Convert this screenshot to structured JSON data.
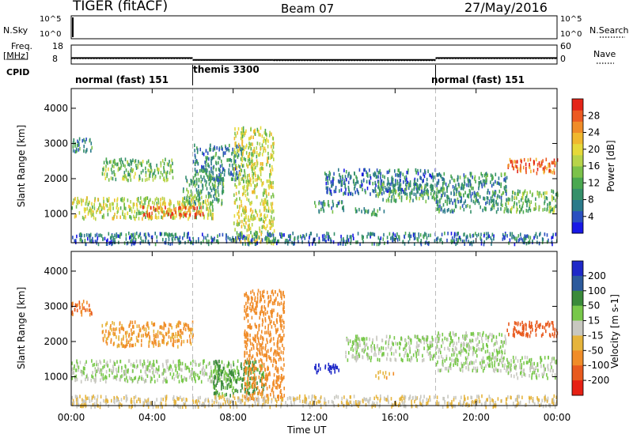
{
  "header": {
    "title": "TIGER (fitACF)",
    "beam": "Beam 07",
    "date": "27/May/2016"
  },
  "top_panels": {
    "nsky_label": "N.Sky",
    "nsky_ticks_left": [
      "10^5",
      "10^0"
    ],
    "nsearch_label": "N.Search",
    "nsearch_ticks_right": [
      "10^5",
      "10^0"
    ],
    "freq_label": "Freq.",
    "freq_unit": "[MHz]",
    "freq_ticks": [
      "18",
      "8"
    ],
    "nave_label": "Nave",
    "nave_ticks": [
      "60",
      "0"
    ],
    "cpid_label": "CPID",
    "cpid_segments": [
      {
        "label": "normal (fast) 151",
        "start_h": 0,
        "end_h": 6
      },
      {
        "label": "themis 3300",
        "start_h": 6,
        "end_h": 18
      },
      {
        "label": "normal (fast) 151",
        "start_h": 18,
        "end_h": 24
      }
    ],
    "freq_series_mhz": [
      {
        "start_h": 0,
        "end_h": 6,
        "value": 11.2
      },
      {
        "start_h": 6,
        "end_h": 10,
        "value": 10.2
      },
      {
        "start_h": 10,
        "end_h": 18,
        "value": 10.2
      },
      {
        "start_h": 18,
        "end_h": 24,
        "value": 11.2
      }
    ],
    "nave_series": [
      {
        "start_h": 0,
        "end_h": 6,
        "value": 17
      },
      {
        "start_h": 6,
        "end_h": 10,
        "value": 12
      },
      {
        "start_h": 10,
        "end_h": 18,
        "value": 11
      },
      {
        "start_h": 18,
        "end_h": 24,
        "value": 17
      }
    ]
  },
  "chart_data": [
    {
      "type": "heatmap",
      "panel": "power",
      "ylabel": "Slant Range [km]",
      "xlabel": "",
      "x_range_hours": [
        0,
        24
      ],
      "ylim": [
        180,
        4560
      ],
      "y_ticks": [
        "1000",
        "2000",
        "3000",
        "4000"
      ],
      "x_ticks": [
        "00:00",
        "04:00",
        "08:00",
        "12:00",
        "16:00",
        "20:00",
        "00:00"
      ],
      "colorbar": {
        "label": "Power [dB]",
        "ticks": [
          "4",
          "8",
          "12",
          "16",
          "20",
          "24",
          "28"
        ],
        "colors": [
          "#1818e6",
          "#2a4fc0",
          "#2b7a8a",
          "#35906a",
          "#4aa850",
          "#7cc24a",
          "#b8d44a",
          "#e6d93a",
          "#f0b82e",
          "#f08c28",
          "#ec5a22",
          "#e42418"
        ]
      },
      "regions": [
        {
          "t0": 0.0,
          "t1": 7.0,
          "r0": 900,
          "r1": 1500,
          "value": 18
        },
        {
          "t0": 3.5,
          "t1": 6.5,
          "r0": 950,
          "r1": 1250,
          "value": 26
        },
        {
          "t0": 5.5,
          "t1": 7.5,
          "r0": 1300,
          "r1": 2100,
          "value": 12
        },
        {
          "t0": 0.0,
          "t1": 1.0,
          "r0": 2800,
          "r1": 3200,
          "value": 10
        },
        {
          "t0": 1.5,
          "t1": 5.0,
          "r0": 2000,
          "r1": 2600,
          "value": 14
        },
        {
          "t0": 6.0,
          "t1": 8.5,
          "r0": 2000,
          "r1": 3000,
          "value": 9
        },
        {
          "t0": 8.0,
          "t1": 10.0,
          "r0": 200,
          "r1": 3500,
          "value": 18
        },
        {
          "t0": 12.0,
          "t1": 13.5,
          "r0": 1100,
          "r1": 1400,
          "value": 10
        },
        {
          "t0": 12.5,
          "t1": 18.0,
          "r0": 1600,
          "r1": 2300,
          "value": 8
        },
        {
          "t0": 15.0,
          "t1": 18.0,
          "r0": 1400,
          "r1": 1900,
          "value": 12
        },
        {
          "t0": 14.0,
          "t1": 15.5,
          "r0": 1000,
          "r1": 1200,
          "value": 11
        },
        {
          "t0": 18.0,
          "t1": 21.5,
          "r0": 1100,
          "r1": 2200,
          "value": 10
        },
        {
          "t0": 21.5,
          "t1": 24.0,
          "r0": 2200,
          "r1": 2600,
          "value": 26
        },
        {
          "t0": 21.5,
          "t1": 24.0,
          "r0": 1100,
          "r1": 1700,
          "value": 14
        },
        {
          "t0": 0.0,
          "t1": 24.0,
          "r0": 180,
          "r1": 500,
          "value": 8
        }
      ]
    },
    {
      "type": "heatmap",
      "panel": "velocity",
      "ylabel": "Slant Range [km]",
      "xlabel": "Time UT",
      "x_range_hours": [
        0,
        24
      ],
      "ylim": [
        180,
        4560
      ],
      "y_ticks": [
        "1000",
        "2000",
        "3000",
        "4000"
      ],
      "x_ticks": [
        "00:00",
        "04:00",
        "08:00",
        "12:00",
        "16:00",
        "20:00",
        "00:00"
      ],
      "colorbar": {
        "label": "Velocity [m s-1]",
        "ticks": [
          "200",
          "100",
          "50",
          "15",
          "-15",
          "-50",
          "-100",
          "-200"
        ],
        "colors": [
          "#1e28c8",
          "#2c5a9c",
          "#3a8a3a",
          "#78c84a",
          "#c8c8c0",
          "#e6b43c",
          "#f08c28",
          "#e85a1e",
          "#e62014"
        ]
      },
      "regions": [
        {
          "t0": 0.0,
          "t1": 8.0,
          "r0": 900,
          "r1": 1500,
          "value": 0
        },
        {
          "t0": 0.0,
          "t1": 1.0,
          "r0": 2800,
          "r1": 3200,
          "value": -150
        },
        {
          "t0": 1.5,
          "t1": 6.0,
          "r0": 1900,
          "r1": 2600,
          "value": -80
        },
        {
          "t0": 7.0,
          "t1": 9.5,
          "r0": 500,
          "r1": 1500,
          "value": 40
        },
        {
          "t0": 8.5,
          "t1": 10.5,
          "r0": 400,
          "r1": 3500,
          "value": -100
        },
        {
          "t0": 12.0,
          "t1": 13.3,
          "r0": 1150,
          "r1": 1400,
          "value": 200
        },
        {
          "t0": 13.5,
          "t1": 18.0,
          "r0": 1500,
          "r1": 2200,
          "value": 0
        },
        {
          "t0": 15.0,
          "t1": 16.0,
          "r0": 1000,
          "r1": 1200,
          "value": -60
        },
        {
          "t0": 18.0,
          "t1": 21.5,
          "r0": 1200,
          "r1": 2300,
          "value": 0
        },
        {
          "t0": 21.5,
          "t1": 24.0,
          "r0": 2200,
          "r1": 2600,
          "value": -200
        },
        {
          "t0": 21.5,
          "t1": 24.0,
          "r0": 1000,
          "r1": 1600,
          "value": 0
        },
        {
          "t0": 0.0,
          "t1": 24.0,
          "r0": 180,
          "r1": 500,
          "value": -30
        }
      ]
    }
  ]
}
